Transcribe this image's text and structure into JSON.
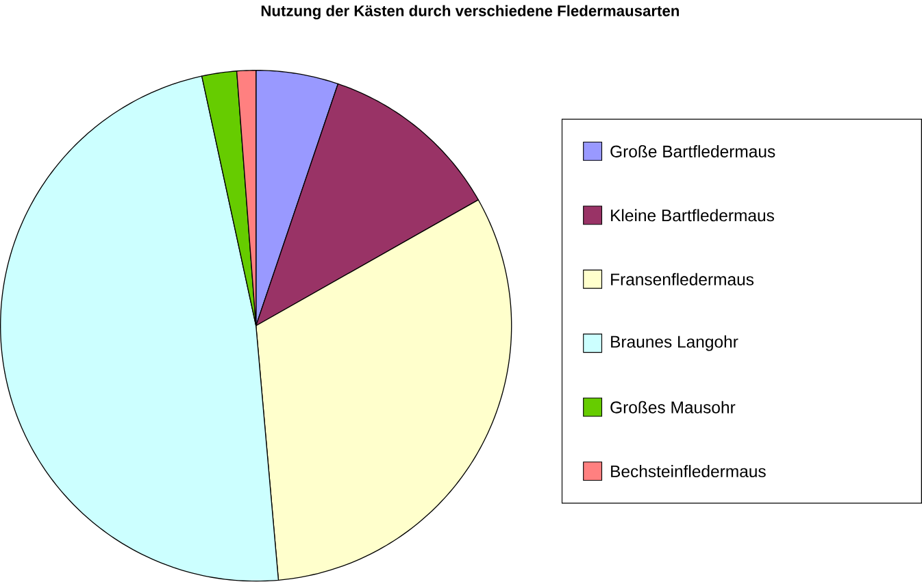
{
  "chart_data": {
    "type": "pie",
    "title": "Nutzung der Kästen durch verschiedene Fledermausarten",
    "categories": [
      "Große Bartfledermaus",
      "Kleine Bartfledermaus",
      "Fransenfledermaus",
      "Braunes Langohr",
      "Großes Mausohr",
      "Bechsteinfledermaus"
    ],
    "values": [
      5.2,
      11.6,
      31.8,
      48.0,
      2.2,
      1.2
    ],
    "colors": [
      "#9999ff",
      "#993366",
      "#ffffcc",
      "#ccffff",
      "#66cc00",
      "#ff8080"
    ],
    "legend": "right"
  }
}
